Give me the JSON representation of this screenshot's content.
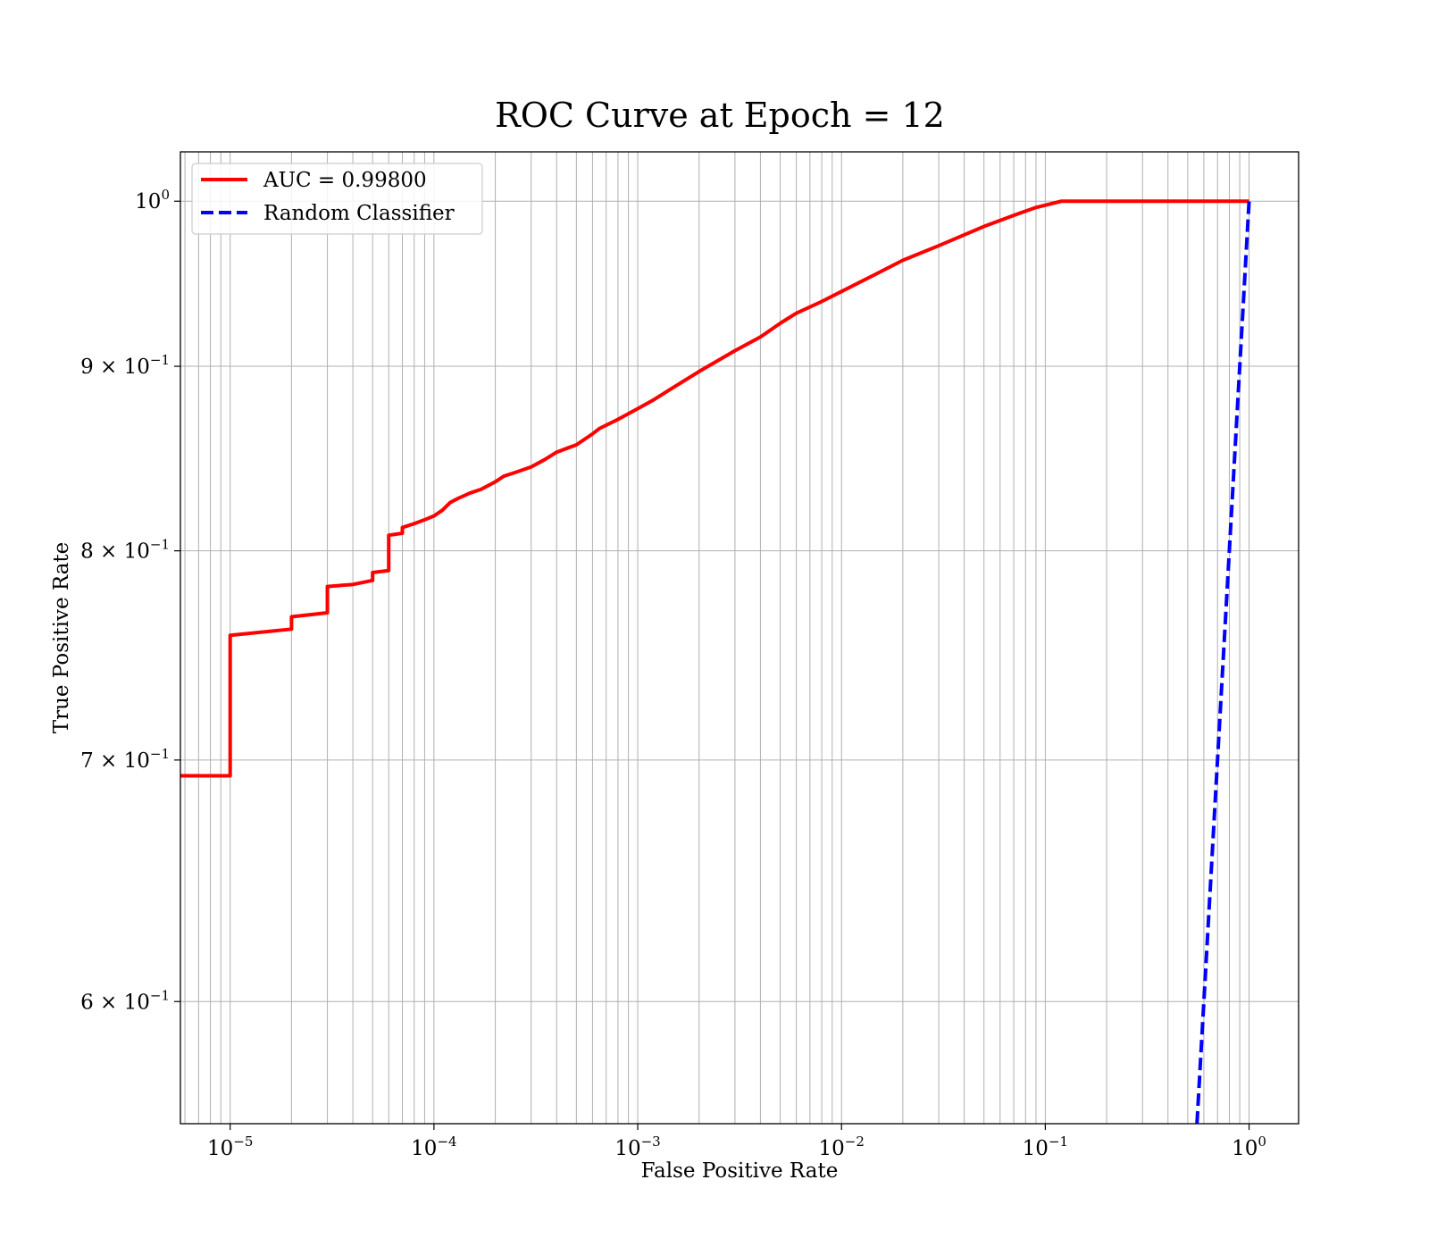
{
  "chart_data": {
    "type": "line",
    "title": "ROC Curve at Epoch = 12",
    "xlabel": "False Positive Rate",
    "ylabel": "True Positive Rate",
    "xscale": "log",
    "yscale": "log",
    "xlim": [
      5.7e-06,
      1.75
    ],
    "ylim": [
      0.555,
      1.032
    ],
    "grid": true,
    "legend_position": "top-left",
    "x_ticks": [
      {
        "value": 1e-05,
        "base": "10",
        "exp": "−5"
      },
      {
        "value": 0.0001,
        "base": "10",
        "exp": "−4"
      },
      {
        "value": 0.001,
        "base": "10",
        "exp": "−3"
      },
      {
        "value": 0.01,
        "base": "10",
        "exp": "−2"
      },
      {
        "value": 0.1,
        "base": "10",
        "exp": "−1"
      },
      {
        "value": 1,
        "base": "10",
        "exp": "0"
      }
    ],
    "y_ticks": [
      {
        "value": 1.0,
        "base": "10",
        "exp": "0"
      },
      {
        "value": 0.9,
        "base": "9 × 10",
        "exp": "−1"
      },
      {
        "value": 0.8,
        "base": "8 × 10",
        "exp": "−1"
      },
      {
        "value": 0.7,
        "base": "7 × 10",
        "exp": "−1"
      },
      {
        "value": 0.6,
        "base": "6 × 10",
        "exp": "−1"
      }
    ],
    "series": [
      {
        "name": "AUC = 0.99800",
        "color": "#ff0000",
        "style": "solid",
        "x": [
          5.7e-06,
          1e-05,
          1e-05,
          2e-05,
          2e-05,
          3e-05,
          3e-05,
          4e-05,
          5e-05,
          5e-05,
          6e-05,
          6e-05,
          7e-05,
          7e-05,
          8e-05,
          9e-05,
          0.0001,
          0.00011,
          0.00012,
          0.00013,
          0.00015,
          0.00017,
          0.0002,
          0.00022,
          0.00025,
          0.0003,
          0.00035,
          0.0004,
          0.0005,
          0.0006,
          0.00065,
          0.0008,
          0.001,
          0.0012,
          0.0015,
          0.002,
          0.003,
          0.004,
          0.005,
          0.006,
          0.008,
          0.01,
          0.015,
          0.02,
          0.03,
          0.05,
          0.07,
          0.09,
          0.12,
          0.2,
          0.5,
          1.0
        ],
        "y": [
          0.693,
          0.693,
          0.758,
          0.761,
          0.767,
          0.769,
          0.782,
          0.783,
          0.785,
          0.789,
          0.79,
          0.808,
          0.809,
          0.812,
          0.814,
          0.816,
          0.818,
          0.821,
          0.825,
          0.827,
          0.83,
          0.832,
          0.836,
          0.839,
          0.841,
          0.844,
          0.848,
          0.852,
          0.856,
          0.862,
          0.865,
          0.87,
          0.876,
          0.881,
          0.888,
          0.897,
          0.909,
          0.917,
          0.925,
          0.931,
          0.938,
          0.944,
          0.955,
          0.963,
          0.972,
          0.984,
          0.991,
          0.996,
          1.0,
          1.0,
          1.0,
          1.0
        ]
      },
      {
        "name": "Random Classifier",
        "color": "#0000ff",
        "style": "dashed",
        "x": [
          0.555,
          1.0
        ],
        "y": [
          0.555,
          1.0
        ]
      }
    ]
  }
}
